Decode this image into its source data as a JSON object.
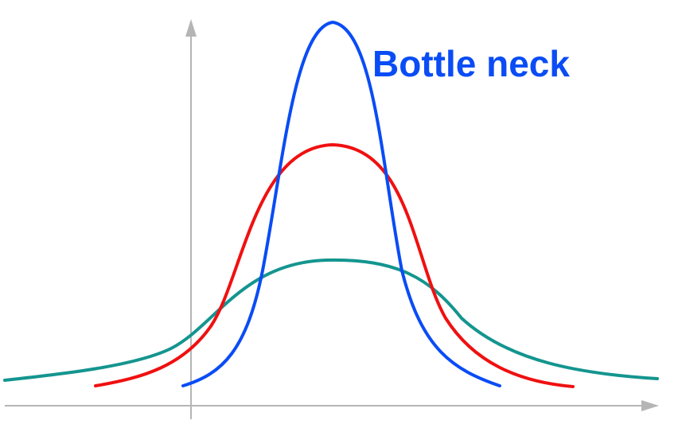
{
  "annotation": {
    "text": "Bottle neck",
    "color": "#0a4cf5"
  },
  "colors": {
    "axis": "#b5b5b5",
    "blue_curve": "#0a4cf5",
    "red_curve": "#f01010",
    "teal_curve": "#14958f"
  },
  "curves": {
    "blue": {
      "shape": "narrow-tall",
      "peak_level": 1.0
    },
    "red": {
      "shape": "medium",
      "peak_level": 0.68
    },
    "teal": {
      "shape": "wide-flat",
      "peak_level": 0.38
    }
  }
}
